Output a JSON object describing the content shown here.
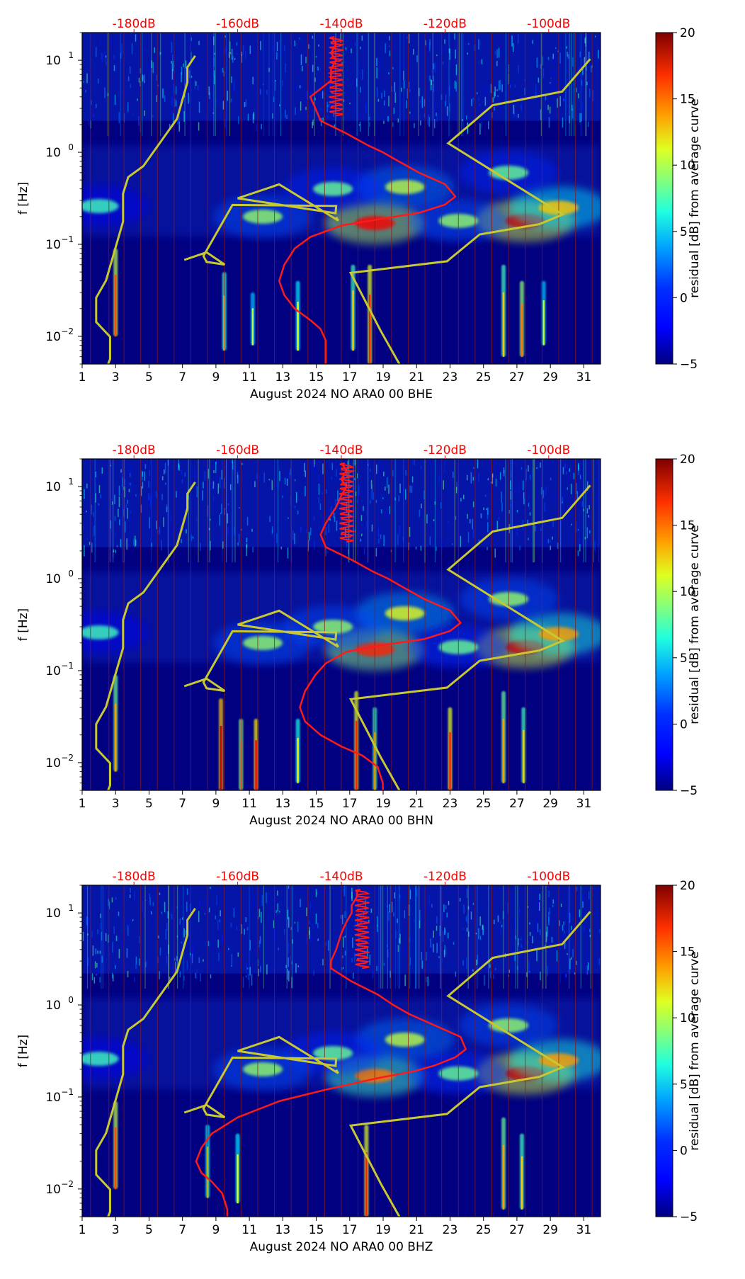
{
  "colors": {
    "background_dark": "#000080",
    "background_mid": "#0a23b4",
    "median_curve": "#ff1a1a",
    "noise_model": "#c8c832",
    "day_line": "#8b1a1a",
    "top_axis_text": "#ff0000",
    "colormap": [
      "#00007f",
      "#0000ff",
      "#007fff",
      "#00ffff",
      "#7fff7f",
      "#ffff00",
      "#ff7f00",
      "#ff0000",
      "#7f0000"
    ]
  },
  "chart_data": [
    {
      "type": "heatmap",
      "title": "",
      "xlabel": "August 2024 NO ARA0 00 BHE",
      "ylabel": "f [Hz]",
      "x_range": [
        1,
        32
      ],
      "x_ticks": [
        1,
        3,
        5,
        7,
        9,
        11,
        13,
        15,
        17,
        19,
        21,
        23,
        25,
        27,
        29,
        31
      ],
      "y_scale": "log",
      "y_range_hz": [
        0.005,
        20
      ],
      "y_ticks": [
        {
          "value": 0.01,
          "base": "10",
          "exp": "−2"
        },
        {
          "value": 0.1,
          "base": "10",
          "exp": "−1"
        },
        {
          "value": 1,
          "base": "10",
          "exp": "0"
        },
        {
          "value": 10,
          "base": "10",
          "exp": "1"
        }
      ],
      "top_axis": {
        "label_range_db": [
          -190,
          -90
        ],
        "ticks": [
          "-180dB",
          "-160dB",
          "-140dB",
          "-120dB",
          "-100dB"
        ],
        "tick_values": [
          -180,
          -160,
          -140,
          -120,
          -100
        ]
      },
      "colorbar": {
        "label": "residual [dB] from average curve",
        "range": [
          -5,
          20
        ],
        "ticks": [
          "−5",
          "0",
          "5",
          "10",
          "15",
          "20"
        ],
        "tick_values": [
          -5,
          0,
          5,
          10,
          15,
          20
        ]
      },
      "day_markers": [
        1.5,
        2.6,
        3.5,
        4.5,
        5.5,
        6.5,
        7.5,
        8.5,
        9.5,
        10.5,
        11.5,
        12.5,
        13.5,
        14.5,
        15.5,
        16.5,
        17.5,
        18.5,
        19.5,
        20.5,
        21.5,
        22.5,
        23.5,
        24.5,
        25.5,
        26.5,
        27.5,
        28.5,
        29.5,
        30.5,
        31.5
      ],
      "median_psd_db": [
        {
          "f": 18,
          "db": -142
        },
        {
          "f": 15,
          "db": -141
        },
        {
          "f": 12,
          "db": -142
        },
        {
          "f": 10,
          "db": -141
        },
        {
          "f": 8,
          "db": -142
        },
        {
          "f": 6,
          "db": -142
        },
        {
          "f": 4,
          "db": -146
        },
        {
          "f": 3,
          "db": -145
        },
        {
          "f": 2.2,
          "db": -144
        },
        {
          "f": 1.6,
          "db": -139
        },
        {
          "f": 1.2,
          "db": -135
        },
        {
          "f": 1.0,
          "db": -132
        },
        {
          "f": 0.8,
          "db": -129
        },
        {
          "f": 0.6,
          "db": -125
        },
        {
          "f": 0.45,
          "db": -120
        },
        {
          "f": 0.33,
          "db": -118
        },
        {
          "f": 0.27,
          "db": -120
        },
        {
          "f": 0.22,
          "db": -125
        },
        {
          "f": 0.19,
          "db": -132
        },
        {
          "f": 0.16,
          "db": -140
        },
        {
          "f": 0.12,
          "db": -146
        },
        {
          "f": 0.09,
          "db": -149
        },
        {
          "f": 0.06,
          "db": -151
        },
        {
          "f": 0.04,
          "db": -152
        },
        {
          "f": 0.028,
          "db": -151
        },
        {
          "f": 0.02,
          "db": -149
        },
        {
          "f": 0.015,
          "db": -146
        },
        {
          "f": 0.012,
          "db": -144
        },
        {
          "f": 0.009,
          "db": -143
        },
        {
          "f": 0.006,
          "db": -143
        },
        {
          "f": 0.005,
          "db": -143
        }
      ],
      "hotspots": [
        {
          "x": 18.5,
          "f": 0.17,
          "level": 17
        },
        {
          "x": 27.5,
          "f": 0.18,
          "level": 18
        },
        {
          "x": 29.5,
          "f": 0.25,
          "level": 12
        },
        {
          "x": 20.3,
          "f": 0.42,
          "level": 9
        },
        {
          "x": 16,
          "f": 0.4,
          "level": 7
        },
        {
          "x": 26.5,
          "f": 0.6,
          "level": 7
        },
        {
          "x": 23.5,
          "f": 0.18,
          "level": 8
        },
        {
          "x": 11.8,
          "f": 0.2,
          "level": 8
        },
        {
          "x": 2,
          "f": 0.26,
          "level": 6
        }
      ],
      "spikes": [
        {
          "x": 3.0,
          "f_lo": 0.01,
          "f_hi": 0.09,
          "level": 15
        },
        {
          "x": 9.5,
          "f_lo": 0.007,
          "f_hi": 0.05,
          "level": 12
        },
        {
          "x": 11.2,
          "f_lo": 0.008,
          "f_hi": 0.03,
          "level": 9
        },
        {
          "x": 13.9,
          "f_lo": 0.007,
          "f_hi": 0.04,
          "level": 10
        },
        {
          "x": 17.2,
          "f_lo": 0.007,
          "f_hi": 0.06,
          "level": 12
        },
        {
          "x": 18.2,
          "f_lo": 0.005,
          "f_hi": 0.06,
          "level": 16
        },
        {
          "x": 26.2,
          "f_lo": 0.006,
          "f_hi": 0.06,
          "level": 12
        },
        {
          "x": 27.3,
          "f_lo": 0.006,
          "f_hi": 0.04,
          "level": 14
        },
        {
          "x": 28.6,
          "f_lo": 0.008,
          "f_hi": 0.04,
          "level": 9
        }
      ]
    },
    {
      "type": "heatmap",
      "title": "",
      "xlabel": "August 2024 NO ARA0 00 BHN",
      "ylabel": "f [Hz]",
      "x_range": [
        1,
        32
      ],
      "x_ticks": [
        1,
        3,
        5,
        7,
        9,
        11,
        13,
        15,
        17,
        19,
        21,
        23,
        25,
        27,
        29,
        31
      ],
      "y_scale": "log",
      "y_range_hz": [
        0.005,
        20
      ],
      "y_ticks": [
        {
          "value": 0.01,
          "base": "10",
          "exp": "−2"
        },
        {
          "value": 0.1,
          "base": "10",
          "exp": "−1"
        },
        {
          "value": 1,
          "base": "10",
          "exp": "0"
        },
        {
          "value": 10,
          "base": "10",
          "exp": "1"
        }
      ],
      "top_axis": {
        "label_range_db": [
          -190,
          -90
        ],
        "ticks": [
          "-180dB",
          "-160dB",
          "-140dB",
          "-120dB",
          "-100dB"
        ],
        "tick_values": [
          -180,
          -160,
          -140,
          -120,
          -100
        ]
      },
      "colorbar": {
        "label": "residual [dB] from average curve",
        "range": [
          -5,
          20
        ],
        "ticks": [
          "−5",
          "0",
          "5",
          "10",
          "15",
          "20"
        ],
        "tick_values": [
          -5,
          0,
          5,
          10,
          15,
          20
        ]
      },
      "day_markers": [
        1.5,
        2.6,
        3.5,
        4.5,
        5.5,
        6.5,
        7.5,
        8.5,
        9.5,
        10.5,
        11.5,
        12.5,
        13.5,
        14.5,
        15.5,
        16.5,
        17.5,
        18.5,
        19.5,
        20.5,
        21.5,
        22.5,
        23.5,
        24.5,
        25.5,
        26.5,
        27.5,
        28.5,
        29.5,
        30.5,
        31.5
      ],
      "median_psd_db": [
        {
          "f": 18,
          "db": -140
        },
        {
          "f": 15,
          "db": -139
        },
        {
          "f": 12,
          "db": -140
        },
        {
          "f": 10,
          "db": -139
        },
        {
          "f": 8,
          "db": -140
        },
        {
          "f": 6,
          "db": -141
        },
        {
          "f": 4,
          "db": -143
        },
        {
          "f": 3,
          "db": -144
        },
        {
          "f": 2.2,
          "db": -143
        },
        {
          "f": 1.6,
          "db": -138
        },
        {
          "f": 1.2,
          "db": -134
        },
        {
          "f": 1.0,
          "db": -131
        },
        {
          "f": 0.8,
          "db": -128
        },
        {
          "f": 0.6,
          "db": -124
        },
        {
          "f": 0.45,
          "db": -119
        },
        {
          "f": 0.33,
          "db": -117
        },
        {
          "f": 0.27,
          "db": -119
        },
        {
          "f": 0.22,
          "db": -124
        },
        {
          "f": 0.19,
          "db": -132
        },
        {
          "f": 0.16,
          "db": -139
        },
        {
          "f": 0.12,
          "db": -143
        },
        {
          "f": 0.09,
          "db": -145
        },
        {
          "f": 0.06,
          "db": -147
        },
        {
          "f": 0.04,
          "db": -148
        },
        {
          "f": 0.028,
          "db": -147
        },
        {
          "f": 0.02,
          "db": -144
        },
        {
          "f": 0.015,
          "db": -140
        },
        {
          "f": 0.012,
          "db": -136
        },
        {
          "f": 0.009,
          "db": -133
        },
        {
          "f": 0.006,
          "db": -132
        },
        {
          "f": 0.005,
          "db": -132
        }
      ],
      "hotspots": [
        {
          "x": 18.5,
          "f": 0.17,
          "level": 16
        },
        {
          "x": 27.5,
          "f": 0.18,
          "level": 18
        },
        {
          "x": 29.5,
          "f": 0.25,
          "level": 13
        },
        {
          "x": 20.3,
          "f": 0.42,
          "level": 10
        },
        {
          "x": 16,
          "f": 0.3,
          "level": 8
        },
        {
          "x": 26.5,
          "f": 0.6,
          "level": 8
        },
        {
          "x": 23.5,
          "f": 0.18,
          "level": 7
        },
        {
          "x": 11.8,
          "f": 0.2,
          "level": 8
        },
        {
          "x": 2,
          "f": 0.26,
          "level": 6
        }
      ],
      "spikes": [
        {
          "x": 3.0,
          "f_lo": 0.008,
          "f_hi": 0.09,
          "level": 13
        },
        {
          "x": 9.3,
          "f_lo": 0.005,
          "f_hi": 0.05,
          "level": 18
        },
        {
          "x": 10.5,
          "f_lo": 0.005,
          "f_hi": 0.03,
          "level": 14
        },
        {
          "x": 11.4,
          "f_lo": 0.005,
          "f_hi": 0.03,
          "level": 17
        },
        {
          "x": 13.9,
          "f_lo": 0.006,
          "f_hi": 0.03,
          "level": 11
        },
        {
          "x": 17.4,
          "f_lo": 0.005,
          "f_hi": 0.06,
          "level": 16
        },
        {
          "x": 18.5,
          "f_lo": 0.005,
          "f_hi": 0.04,
          "level": 12
        },
        {
          "x": 23.0,
          "f_lo": 0.005,
          "f_hi": 0.04,
          "level": 16
        },
        {
          "x": 26.2,
          "f_lo": 0.006,
          "f_hi": 0.06,
          "level": 13
        },
        {
          "x": 27.4,
          "f_lo": 0.006,
          "f_hi": 0.04,
          "level": 12
        }
      ]
    },
    {
      "type": "heatmap",
      "title": "",
      "xlabel": "August 2024 NO ARA0 00 BHZ",
      "ylabel": "f [Hz]",
      "x_range": [
        1,
        32
      ],
      "x_ticks": [
        1,
        3,
        5,
        7,
        9,
        11,
        13,
        15,
        17,
        19,
        21,
        23,
        25,
        27,
        29,
        31
      ],
      "y_scale": "log",
      "y_range_hz": [
        0.005,
        20
      ],
      "y_ticks": [
        {
          "value": 0.01,
          "base": "10",
          "exp": "−2"
        },
        {
          "value": 0.1,
          "base": "10",
          "exp": "−1"
        },
        {
          "value": 1,
          "base": "10",
          "exp": "0"
        },
        {
          "value": 10,
          "base": "10",
          "exp": "1"
        }
      ],
      "top_axis": {
        "label_range_db": [
          -190,
          -90
        ],
        "ticks": [
          "-180dB",
          "-160dB",
          "-140dB",
          "-120dB",
          "-100dB"
        ],
        "tick_values": [
          -180,
          -160,
          -140,
          -120,
          -100
        ]
      },
      "colorbar": {
        "label": "residual [dB] from average curve",
        "range": [
          -5,
          20
        ],
        "ticks": [
          "−5",
          "0",
          "5",
          "10",
          "15",
          "20"
        ],
        "tick_values": [
          -5,
          0,
          5,
          10,
          15,
          20
        ]
      },
      "day_markers": [
        1.5,
        2.6,
        3.5,
        4.5,
        5.5,
        6.5,
        7.5,
        8.5,
        9.5,
        10.5,
        11.5,
        12.5,
        13.5,
        14.5,
        15.5,
        16.5,
        17.5,
        18.5,
        19.5,
        20.5,
        21.5,
        22.5,
        23.5,
        24.5,
        25.5,
        26.5,
        27.5,
        28.5,
        29.5,
        30.5,
        31.5
      ],
      "median_psd_db": [
        {
          "f": 18,
          "db": -137
        },
        {
          "f": 15,
          "db": -137
        },
        {
          "f": 12,
          "db": -138
        },
        {
          "f": 10,
          "db": -138
        },
        {
          "f": 8,
          "db": -139
        },
        {
          "f": 6,
          "db": -140
        },
        {
          "f": 4,
          "db": -141
        },
        {
          "f": 3,
          "db": -142
        },
        {
          "f": 2.5,
          "db": -142
        },
        {
          "f": 1.8,
          "db": -138
        },
        {
          "f": 1.3,
          "db": -133
        },
        {
          "f": 1.0,
          "db": -130
        },
        {
          "f": 0.8,
          "db": -127
        },
        {
          "f": 0.6,
          "db": -122
        },
        {
          "f": 0.45,
          "db": -117
        },
        {
          "f": 0.33,
          "db": -116
        },
        {
          "f": 0.27,
          "db": -118
        },
        {
          "f": 0.22,
          "db": -122
        },
        {
          "f": 0.19,
          "db": -126
        },
        {
          "f": 0.16,
          "db": -133
        },
        {
          "f": 0.12,
          "db": -143
        },
        {
          "f": 0.09,
          "db": -152
        },
        {
          "f": 0.06,
          "db": -160
        },
        {
          "f": 0.04,
          "db": -165
        },
        {
          "f": 0.028,
          "db": -167
        },
        {
          "f": 0.02,
          "db": -168
        },
        {
          "f": 0.015,
          "db": -167
        },
        {
          "f": 0.012,
          "db": -165
        },
        {
          "f": 0.009,
          "db": -163
        },
        {
          "f": 0.006,
          "db": -162
        },
        {
          "f": 0.005,
          "db": -162
        }
      ],
      "hotspots": [
        {
          "x": 18.5,
          "f": 0.17,
          "level": 14
        },
        {
          "x": 27.5,
          "f": 0.18,
          "level": 18
        },
        {
          "x": 29.5,
          "f": 0.25,
          "level": 13
        },
        {
          "x": 20.3,
          "f": 0.42,
          "level": 9
        },
        {
          "x": 16,
          "f": 0.3,
          "level": 7
        },
        {
          "x": 26.5,
          "f": 0.6,
          "level": 8
        },
        {
          "x": 23.5,
          "f": 0.18,
          "level": 7
        },
        {
          "x": 11.8,
          "f": 0.2,
          "level": 8
        },
        {
          "x": 2,
          "f": 0.26,
          "level": 6
        }
      ],
      "spikes": [
        {
          "x": 3.0,
          "f_lo": 0.01,
          "f_hi": 0.09,
          "level": 15
        },
        {
          "x": 8.5,
          "f_lo": 0.008,
          "f_hi": 0.05,
          "level": 10
        },
        {
          "x": 10.3,
          "f_lo": 0.007,
          "f_hi": 0.04,
          "level": 10
        },
        {
          "x": 18.0,
          "f_lo": 0.005,
          "f_hi": 0.05,
          "level": 16
        },
        {
          "x": 26.2,
          "f_lo": 0.006,
          "f_hi": 0.06,
          "level": 13
        },
        {
          "x": 27.3,
          "f_lo": 0.006,
          "f_hi": 0.04,
          "level": 12
        }
      ]
    }
  ]
}
